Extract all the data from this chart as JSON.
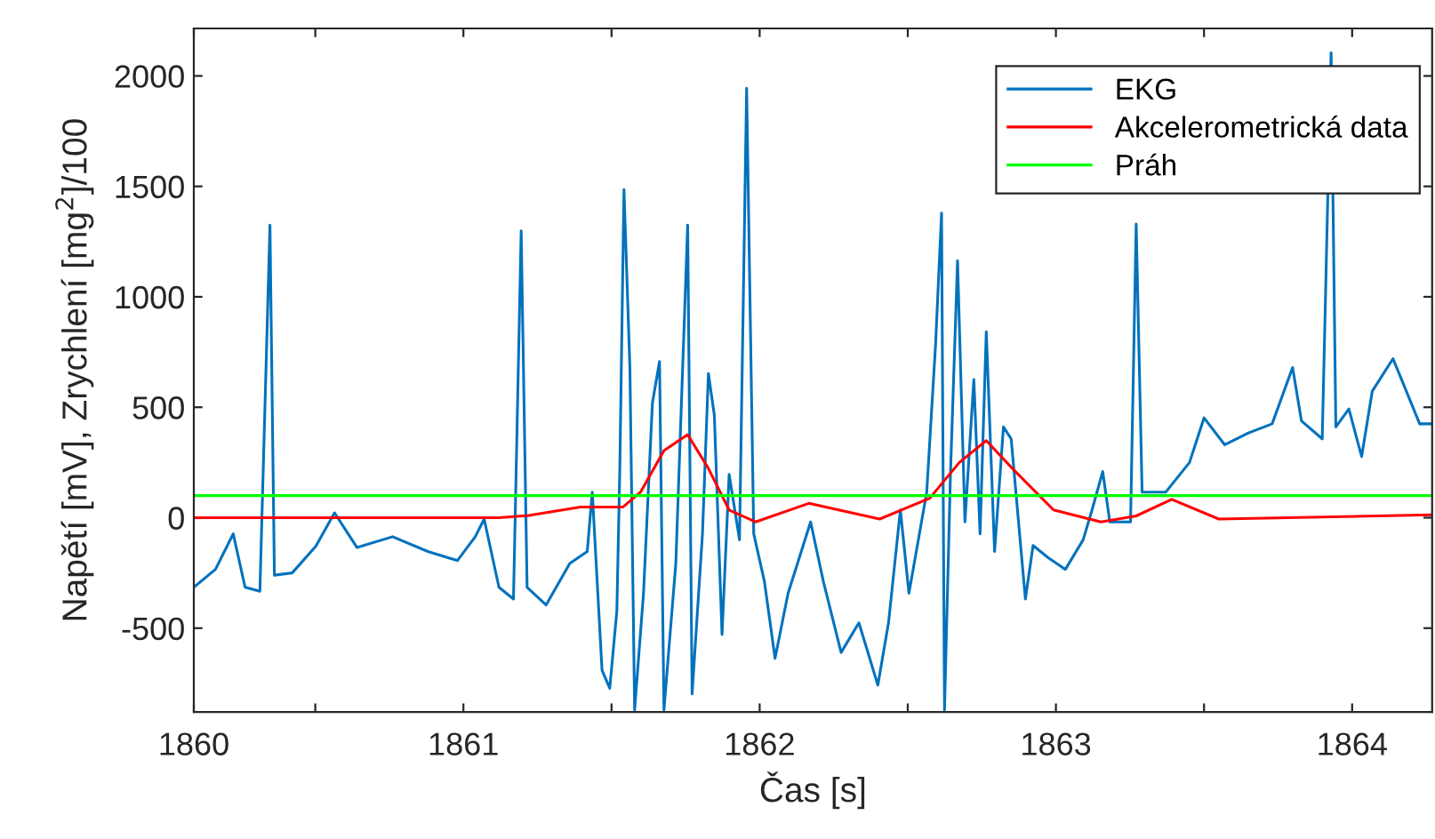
{
  "chart_data": {
    "type": "line",
    "xlabel": "Čas [s]",
    "ylabel": "Napětí [mV], Zrychlení [mg$^{2}$]/100",
    "xlim": [
      1860.09,
      1864.27
    ],
    "ylim": [
      -880,
      2215
    ],
    "xticks": [
      {
        "value": 1860.09,
        "label": "1860"
      },
      {
        "value": 1860.5,
        "label": null
      },
      1861,
      {
        "value": 1861.5,
        "label": null
      },
      1862,
      {
        "value": 1862.5,
        "label": null
      },
      1863,
      {
        "value": 1863.5,
        "label": null
      },
      1864
    ],
    "yticks": [
      -500,
      0,
      500,
      1000,
      1500,
      2000
    ],
    "grid": false,
    "legend": "top right",
    "line_style": "solid",
    "marker": "none",
    "series": [
      {
        "name": "EKG",
        "color": "#0072bd",
        "x": [
          1860.09,
          1860.163,
          1860.223,
          1860.263,
          1860.313,
          1860.347,
          1860.362,
          1860.422,
          1860.502,
          1860.565,
          1860.641,
          1860.761,
          1860.88,
          1860.98,
          1861.04,
          1861.07,
          1861.12,
          1861.169,
          1861.195,
          1861.215,
          1861.279,
          1861.359,
          1861.418,
          1861.435,
          1861.468,
          1861.494,
          1861.518,
          1861.528,
          1861.542,
          1861.562,
          1861.578,
          1861.608,
          1861.638,
          1861.662,
          1861.677,
          1861.717,
          1861.757,
          1861.772,
          1861.807,
          1861.827,
          1861.847,
          1861.873,
          1861.897,
          1861.932,
          1861.956,
          1861.98,
          1862.016,
          1862.052,
          1862.096,
          1862.172,
          1862.215,
          1862.275,
          1862.335,
          1862.399,
          1862.435,
          1862.475,
          1862.504,
          1862.564,
          1862.594,
          1862.614,
          1862.624,
          1862.644,
          1862.668,
          1862.693,
          1862.723,
          1862.744,
          1862.765,
          1862.793,
          1862.823,
          1862.849,
          1862.897,
          1862.923,
          1862.973,
          1863.032,
          1863.092,
          1863.122,
          1863.158,
          1863.182,
          1863.252,
          1863.271,
          1863.291,
          1863.371,
          1863.451,
          1863.5,
          1863.57,
          1863.65,
          1863.73,
          1863.799,
          1863.829,
          1863.899,
          1863.929,
          1863.945,
          1863.989,
          1864.032,
          1864.068,
          1864.138,
          1864.228,
          1864.27
        ],
        "values": [
          -315,
          -234,
          -73,
          -315,
          -333,
          1325,
          -260,
          -250,
          -129,
          22,
          -135,
          -86,
          -153,
          -194,
          -86,
          -6,
          -315,
          -368,
          1298,
          -315,
          -395,
          -207,
          -153,
          116,
          -691,
          -772,
          -421,
          223,
          1486,
          681,
          -870,
          -342,
          519,
          707,
          -870,
          -207,
          1325,
          -798,
          -73,
          653,
          465,
          -529,
          196,
          -100,
          1944,
          -73,
          -288,
          -637,
          -342,
          -19,
          -288,
          -610,
          -476,
          -758,
          -476,
          35,
          -342,
          116,
          788,
          1379,
          -870,
          196,
          1164,
          -19,
          626,
          -73,
          842,
          -153,
          411,
          357,
          -368,
          -126,
          -180,
          -234,
          -100,
          35,
          209,
          -19,
          -19,
          1330,
          116,
          116,
          250,
          452,
          330,
          384,
          425,
          680,
          438,
          357,
          2105,
          411,
          492,
          277,
          573,
          720,
          425,
          425
        ]
      },
      {
        "name": "Akcelerometrická data",
        "color": "#ff0000",
        "x": [
          1860.09,
          1861.12,
          1861.22,
          1861.395,
          1861.538,
          1861.598,
          1861.677,
          1861.757,
          1861.827,
          1861.897,
          1861.986,
          1862.166,
          1862.405,
          1862.574,
          1862.674,
          1862.765,
          1862.853,
          1862.992,
          1863.152,
          1863.271,
          1863.391,
          1863.55,
          1864.27
        ],
        "values": [
          0,
          0,
          10,
          48,
          48,
          116,
          304,
          376,
          223,
          35,
          -19,
          65,
          -6,
          88,
          250,
          349,
          223,
          35,
          -19,
          8,
          83,
          -6,
          13
        ]
      },
      {
        "name": "Práh",
        "color": "#00ff00",
        "x": [
          1860.09,
          1864.27
        ],
        "values": [
          100,
          100
        ]
      }
    ]
  }
}
